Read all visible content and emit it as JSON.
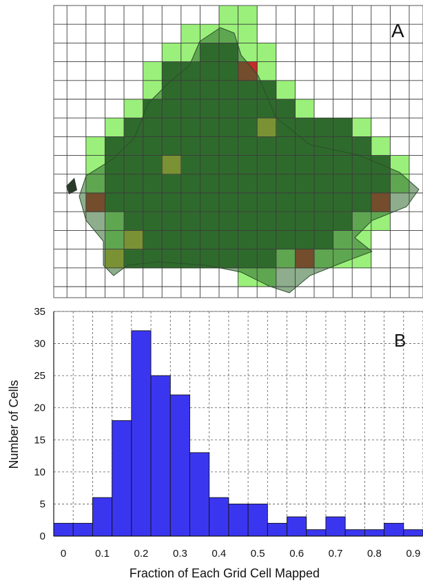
{
  "panel_a": {
    "label": "A",
    "colors": {
      "land": "#2f6a2d",
      "mapped_high": "#2f6a2d",
      "mapped_low": "#9af07a",
      "mapped_mid": "#d4c43a",
      "mapped_none": "#c62a2a",
      "gridline": "#3a3a3a"
    }
  },
  "panel_b": {
    "label": "B"
  },
  "chart_data": {
    "type": "bar",
    "xlabel": "Fraction of Each Grid Cell Mapped",
    "ylabel": "Number of Cells",
    "xlim": [
      0,
      0.9
    ],
    "ylim": [
      0,
      35
    ],
    "x_ticks": [
      "0",
      "0.1",
      "0.2",
      "0.3",
      "0.4",
      "0.5",
      "0.6",
      "0.7",
      "0.8",
      "0.9"
    ],
    "y_ticks": [
      "0",
      "5",
      "10",
      "15",
      "20",
      "25",
      "30",
      "35"
    ],
    "bin_width": 0.05,
    "bins_start": [
      -0.025,
      0.025,
      0.075,
      0.125,
      0.175,
      0.225,
      0.275,
      0.325,
      0.375,
      0.425,
      0.475,
      0.525,
      0.575,
      0.625,
      0.675,
      0.725,
      0.775,
      0.825,
      0.875
    ],
    "values": [
      2,
      2,
      6,
      18,
      32,
      25,
      22,
      13,
      6,
      5,
      5,
      2,
      3,
      1,
      3,
      1,
      1,
      2,
      1
    ],
    "bar_color": "#3a36f0",
    "grid": true
  }
}
